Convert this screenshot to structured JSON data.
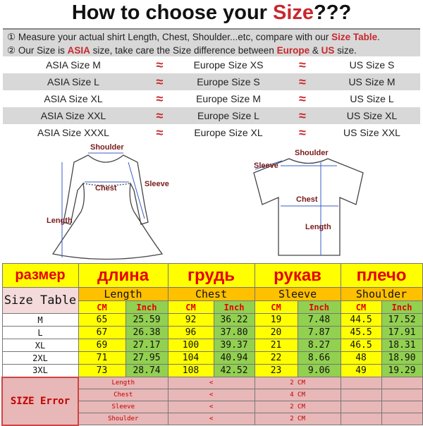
{
  "title": {
    "prefix": "How to choose your ",
    "highlight": "Size",
    "suffix": "???"
  },
  "instructions": [
    {
      "num": "①",
      "parts": [
        "Measure your actual shirt Length, Chest, Shoulder...etc, compare with our ",
        "Size Table",
        "."
      ]
    },
    {
      "num": "②",
      "parts": [
        "Our Size is ",
        "ASIA",
        " size, take care the Size difference between ",
        "Europe",
        " & ",
        "US",
        " size."
      ]
    }
  ],
  "approx_symbol": "≈",
  "conversion": [
    {
      "asia": "ASIA Size M",
      "europe": "Europe Size XS",
      "us": "US Size S"
    },
    {
      "asia": "ASIA Size L",
      "europe": "Europe Size S",
      "us": "US Size M"
    },
    {
      "asia": "ASIA Size XL",
      "europe": "Europe Size M",
      "us": "US Size L"
    },
    {
      "asia": "ASIA Size XXL",
      "europe": "Europe Size L",
      "us": "US Size XL"
    },
    {
      "asia": "ASIA Size XXXL",
      "europe": "Europe Size XL",
      "us": "US Size XXL"
    }
  ],
  "diagram": {
    "dress": {
      "shoulder": "Shoulder",
      "sleeve": "Sleeve",
      "chest": "Chest",
      "length": "Length"
    },
    "tshirt": {
      "shoulder": "Shoulder",
      "sleeve": "Sleeve",
      "chest": "Chest",
      "length": "Length"
    }
  },
  "table": {
    "russian": [
      "размер",
      "длина",
      "грудь",
      "рукав",
      "плечо"
    ],
    "size_table_label": "Size Table",
    "groups": [
      "Length",
      "Chest",
      "Sleeve",
      "Shoulder"
    ],
    "units": [
      "CM",
      "Inch"
    ],
    "rows": [
      {
        "size": "M",
        "vals": [
          "65",
          "25.59",
          "92",
          "36.22",
          "19",
          "7.48",
          "44.5",
          "17.52"
        ]
      },
      {
        "size": "L",
        "vals": [
          "67",
          "26.38",
          "96",
          "37.80",
          "20",
          "7.87",
          "45.5",
          "17.91"
        ]
      },
      {
        "size": "XL",
        "vals": [
          "69",
          "27.17",
          "100",
          "39.37",
          "21",
          "8.27",
          "46.5",
          "18.31"
        ]
      },
      {
        "size": "2XL",
        "vals": [
          "71",
          "27.95",
          "104",
          "40.94",
          "22",
          "8.66",
          "48",
          "18.90"
        ]
      },
      {
        "size": "3XL",
        "vals": [
          "73",
          "28.74",
          "108",
          "42.52",
          "23",
          "9.06",
          "49",
          "19.29"
        ]
      }
    ],
    "error_label": "SIZE Error",
    "errors": [
      {
        "name": "Length",
        "op": "<",
        "value": "2 CM"
      },
      {
        "name": "Chest",
        "op": "<",
        "value": "4 CM"
      },
      {
        "name": "Sleeve",
        "op": "<",
        "value": "2 CM"
      },
      {
        "name": "Shoulder",
        "op": "<",
        "value": "2 CM"
      }
    ],
    "colors": {
      "yellow": "#ffff00",
      "green": "#92d050",
      "orange": "#ffc000",
      "red": "#e60000",
      "pink": "#e8b7b7"
    }
  }
}
